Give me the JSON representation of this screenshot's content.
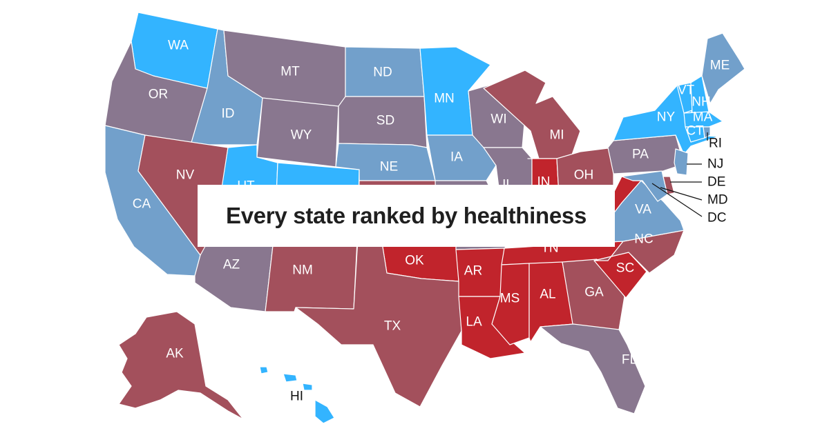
{
  "title": "Every state ranked by healthiness",
  "colors": {
    "tier1": "#33b4ff",
    "tier2": "#72a0cb",
    "tier3": "#89778f",
    "tier4": "#a3505c",
    "tier5": "#c1242c"
  },
  "states": [
    {
      "code": "WA",
      "tier": "tier1"
    },
    {
      "code": "OR",
      "tier": "tier3"
    },
    {
      "code": "CA",
      "tier": "tier2"
    },
    {
      "code": "ID",
      "tier": "tier2"
    },
    {
      "code": "NV",
      "tier": "tier4"
    },
    {
      "code": "UT",
      "tier": "tier1"
    },
    {
      "code": "AZ",
      "tier": "tier3"
    },
    {
      "code": "MT",
      "tier": "tier3"
    },
    {
      "code": "WY",
      "tier": "tier3"
    },
    {
      "code": "CO",
      "tier": "tier1"
    },
    {
      "code": "NM",
      "tier": "tier4"
    },
    {
      "code": "ND",
      "tier": "tier2"
    },
    {
      "code": "SD",
      "tier": "tier3"
    },
    {
      "code": "NE",
      "tier": "tier2"
    },
    {
      "code": "KS",
      "tier": "tier4"
    },
    {
      "code": "OK",
      "tier": "tier5"
    },
    {
      "code": "TX",
      "tier": "tier4"
    },
    {
      "code": "MN",
      "tier": "tier1"
    },
    {
      "code": "IA",
      "tier": "tier2"
    },
    {
      "code": "MO",
      "tier": "tier3"
    },
    {
      "code": "AR",
      "tier": "tier5"
    },
    {
      "code": "LA",
      "tier": "tier5"
    },
    {
      "code": "WI",
      "tier": "tier3"
    },
    {
      "code": "IL",
      "tier": "tier3"
    },
    {
      "code": "MI",
      "tier": "tier4"
    },
    {
      "code": "IN",
      "tier": "tier5"
    },
    {
      "code": "OH",
      "tier": "tier4"
    },
    {
      "code": "KY",
      "tier": "tier5"
    },
    {
      "code": "TN",
      "tier": "tier5"
    },
    {
      "code": "MS",
      "tier": "tier5"
    },
    {
      "code": "AL",
      "tier": "tier5"
    },
    {
      "code": "GA",
      "tier": "tier4"
    },
    {
      "code": "FL",
      "tier": "tier3"
    },
    {
      "code": "SC",
      "tier": "tier5"
    },
    {
      "code": "NC",
      "tier": "tier4"
    },
    {
      "code": "VA",
      "tier": "tier2"
    },
    {
      "code": "WV",
      "tier": "tier5"
    },
    {
      "code": "PA",
      "tier": "tier3"
    },
    {
      "code": "NY",
      "tier": "tier1"
    },
    {
      "code": "NJ",
      "tier": "tier2"
    },
    {
      "code": "DE",
      "tier": "tier4"
    },
    {
      "code": "MD",
      "tier": "tier2"
    },
    {
      "code": "DC",
      "tier": "tier2"
    },
    {
      "code": "VT",
      "tier": "tier1"
    },
    {
      "code": "NH",
      "tier": "tier1"
    },
    {
      "code": "MA",
      "tier": "tier1"
    },
    {
      "code": "CT",
      "tier": "tier1"
    },
    {
      "code": "RI",
      "tier": "tier2"
    },
    {
      "code": "ME",
      "tier": "tier2"
    },
    {
      "code": "AK",
      "tier": "tier4"
    },
    {
      "code": "HI",
      "tier": "tier1"
    }
  ],
  "labels": {
    "WA": "WA",
    "OR": "OR",
    "CA": "CA",
    "ID": "ID",
    "NV": "NV",
    "UT": "UT",
    "AZ": "AZ",
    "MT": "MT",
    "WY": "WY",
    "NM": "NM",
    "ND": "ND",
    "SD": "SD",
    "NE": "NE",
    "OK": "OK",
    "TX": "TX",
    "MN": "MN",
    "IA": "IA",
    "AR": "AR",
    "LA": "LA",
    "WI": "WI",
    "IL": "IL",
    "MI": "MI",
    "IN": "IN",
    "OH": "OH",
    "TN": "TN",
    "MS": "MS",
    "AL": "AL",
    "GA": "GA",
    "FL": "FL",
    "SC": "SC",
    "NC": "NC",
    "VA": "VA",
    "PA": "PA",
    "NY": "NY",
    "VT": "VT",
    "NH": "NH",
    "MA": "MA",
    "CT": "CT",
    "ME": "ME",
    "AK": "AK",
    "HI": "HI",
    "RI": "RI",
    "NJ": "NJ",
    "DE": "DE",
    "MD": "MD",
    "DC": "DC"
  }
}
